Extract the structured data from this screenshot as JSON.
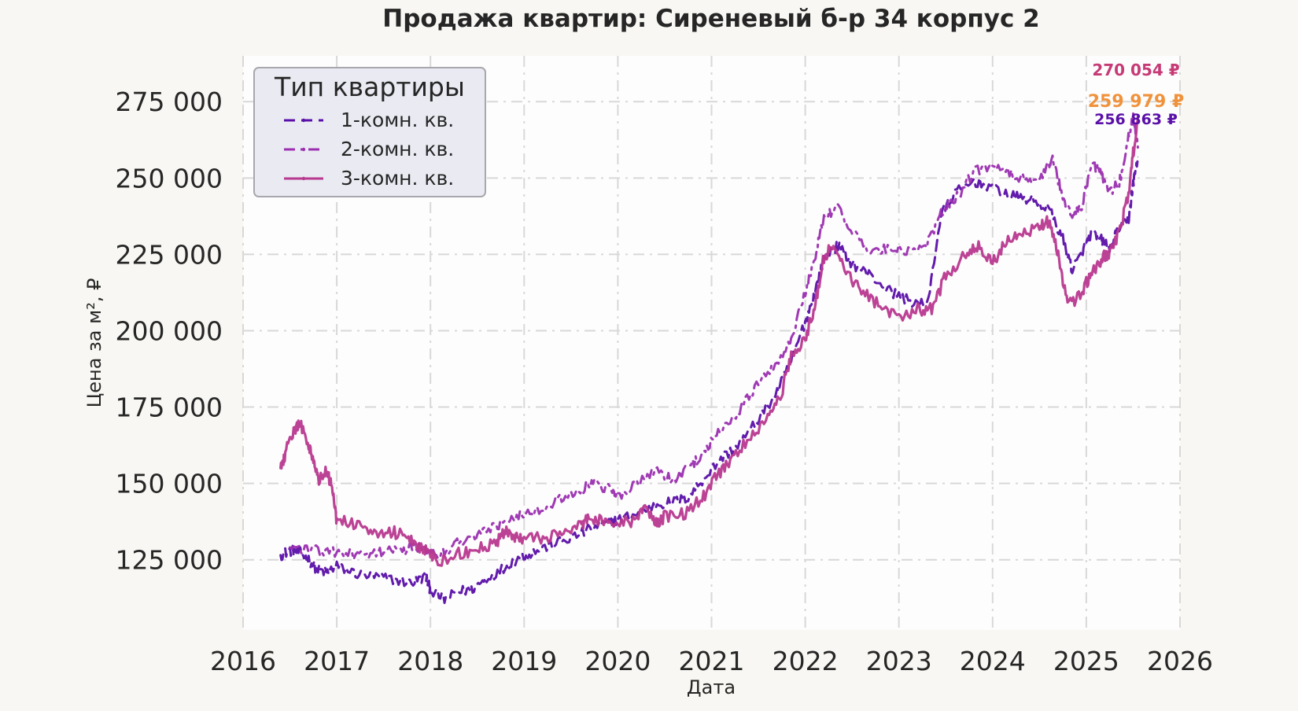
{
  "chart_data": {
    "type": "line",
    "title": "Продажа квартир: Сиреневый б-р 34 корпус 2",
    "xlabel": "Дата",
    "ylabel": "Цена за м², ₽",
    "xlim": [
      2016.0,
      2026.0
    ],
    "ylim": [
      102000,
      290000
    ],
    "x_ticks": [
      "2016",
      "2017",
      "2018",
      "2019",
      "2020",
      "2021",
      "2022",
      "2023",
      "2024",
      "2025",
      "2026"
    ],
    "y_ticks": [
      {
        "value": 125000,
        "label": "125 000"
      },
      {
        "value": 150000,
        "label": "150 000"
      },
      {
        "value": 175000,
        "label": "175 000"
      },
      {
        "value": 200000,
        "label": "200 000"
      },
      {
        "value": 225000,
        "label": "225 000"
      },
      {
        "value": 250000,
        "label": "250 000"
      },
      {
        "value": 275000,
        "label": "275 000"
      }
    ],
    "grid": true,
    "legend": {
      "title": "Тип квартиры",
      "position": "top-left"
    },
    "series": [
      {
        "name": "1-комн. кв.",
        "color": "#5a0fa8",
        "style": "dashed",
        "last_value_label": "256 863 ₽",
        "label_color": "#5a0fa8",
        "points": [
          [
            2016.4,
            126500
          ],
          [
            2016.5,
            128000
          ],
          [
            2016.6,
            127500
          ],
          [
            2016.7,
            125000
          ],
          [
            2016.8,
            121500
          ],
          [
            2016.9,
            121000
          ],
          [
            2017.0,
            123000
          ],
          [
            2017.2,
            120500
          ],
          [
            2017.4,
            119500
          ],
          [
            2017.6,
            118500
          ],
          [
            2017.8,
            117500
          ],
          [
            2017.95,
            119500
          ],
          [
            2018.0,
            115000
          ],
          [
            2018.15,
            112000
          ],
          [
            2018.3,
            114500
          ],
          [
            2018.45,
            115500
          ],
          [
            2018.6,
            119000
          ],
          [
            2018.8,
            122500
          ],
          [
            2018.95,
            126000
          ],
          [
            2019.1,
            127500
          ],
          [
            2019.3,
            130000
          ],
          [
            2019.5,
            132000
          ],
          [
            2019.7,
            135000
          ],
          [
            2019.9,
            137000
          ],
          [
            2020.0,
            138000
          ],
          [
            2020.2,
            140000
          ],
          [
            2020.4,
            143000
          ],
          [
            2020.6,
            144000
          ],
          [
            2020.75,
            145500
          ],
          [
            2020.9,
            151000
          ],
          [
            2021.1,
            158000
          ],
          [
            2021.3,
            163000
          ],
          [
            2021.5,
            171000
          ],
          [
            2021.7,
            180000
          ],
          [
            2021.85,
            190000
          ],
          [
            2022.0,
            203000
          ],
          [
            2022.1,
            212000
          ],
          [
            2022.2,
            224000
          ],
          [
            2022.35,
            228000
          ],
          [
            2022.5,
            222000
          ],
          [
            2022.7,
            218000
          ],
          [
            2022.9,
            213000
          ],
          [
            2023.1,
            210000
          ],
          [
            2023.3,
            208000
          ],
          [
            2023.45,
            238000
          ],
          [
            2023.6,
            245000
          ],
          [
            2023.8,
            249000
          ],
          [
            2024.0,
            247000
          ],
          [
            2024.2,
            244000
          ],
          [
            2024.4,
            243000
          ],
          [
            2024.6,
            240000
          ],
          [
            2024.75,
            230000
          ],
          [
            2024.85,
            220000
          ],
          [
            2024.95,
            225000
          ],
          [
            2025.05,
            232000
          ],
          [
            2025.15,
            230000
          ],
          [
            2025.25,
            227000
          ],
          [
            2025.35,
            234000
          ],
          [
            2025.45,
            236000
          ],
          [
            2025.5,
            248000
          ],
          [
            2025.55,
            256863
          ]
        ]
      },
      {
        "name": "2-комн. кв.",
        "color": "#9b2fb0",
        "style": "dashdot",
        "last_value_label": "259 979 ₽",
        "label_color": "#f0923c",
        "points": [
          [
            2016.5,
            129000
          ],
          [
            2016.7,
            128500
          ],
          [
            2016.9,
            127500
          ],
          [
            2017.1,
            127000
          ],
          [
            2017.3,
            126000
          ],
          [
            2017.5,
            127500
          ],
          [
            2017.7,
            128000
          ],
          [
            2017.85,
            129000
          ],
          [
            2018.0,
            128000
          ],
          [
            2018.15,
            127000
          ],
          [
            2018.3,
            131000
          ],
          [
            2018.5,
            133000
          ],
          [
            2018.7,
            136000
          ],
          [
            2018.85,
            139000
          ],
          [
            2019.0,
            140000
          ],
          [
            2019.2,
            142000
          ],
          [
            2019.4,
            145000
          ],
          [
            2019.6,
            148000
          ],
          [
            2019.75,
            150000
          ],
          [
            2019.9,
            148000
          ],
          [
            2020.0,
            146000
          ],
          [
            2020.2,
            149500
          ],
          [
            2020.4,
            154000
          ],
          [
            2020.6,
            151000
          ],
          [
            2020.8,
            156000
          ],
          [
            2020.95,
            162000
          ],
          [
            2021.1,
            167000
          ],
          [
            2021.3,
            174000
          ],
          [
            2021.5,
            183000
          ],
          [
            2021.7,
            190000
          ],
          [
            2021.85,
            197000
          ],
          [
            2022.0,
            213000
          ],
          [
            2022.1,
            223000
          ],
          [
            2022.2,
            238000
          ],
          [
            2022.35,
            240000
          ],
          [
            2022.5,
            232000
          ],
          [
            2022.7,
            226000
          ],
          [
            2022.9,
            227000
          ],
          [
            2023.1,
            226000
          ],
          [
            2023.3,
            228000
          ],
          [
            2023.45,
            239000
          ],
          [
            2023.6,
            243000
          ],
          [
            2023.8,
            252000
          ],
          [
            2024.0,
            254000
          ],
          [
            2024.2,
            251000
          ],
          [
            2024.4,
            249000
          ],
          [
            2024.55,
            252000
          ],
          [
            2024.65,
            256000
          ],
          [
            2024.75,
            243000
          ],
          [
            2024.85,
            238000
          ],
          [
            2024.95,
            240000
          ],
          [
            2025.05,
            255000
          ],
          [
            2025.15,
            252000
          ],
          [
            2025.25,
            246000
          ],
          [
            2025.35,
            248000
          ],
          [
            2025.45,
            263000
          ],
          [
            2025.5,
            270000
          ],
          [
            2025.55,
            259979
          ]
        ]
      },
      {
        "name": "3-комн. кв.",
        "color": "#b8388f",
        "style": "solid",
        "last_value_label": "270 054 ₽",
        "label_color": "#c63a76",
        "points": [
          [
            2016.4,
            155000
          ],
          [
            2016.45,
            160000
          ],
          [
            2016.55,
            167000
          ],
          [
            2016.6,
            170000
          ],
          [
            2016.7,
            163000
          ],
          [
            2016.75,
            158000
          ],
          [
            2016.8,
            151000
          ],
          [
            2016.9,
            154000
          ],
          [
            2016.95,
            148000
          ],
          [
            2017.0,
            138000
          ],
          [
            2017.2,
            137000
          ],
          [
            2017.4,
            134500
          ],
          [
            2017.6,
            134000
          ],
          [
            2017.75,
            133500
          ],
          [
            2017.9,
            129000
          ],
          [
            2018.0,
            126500
          ],
          [
            2018.1,
            124000
          ],
          [
            2018.3,
            127000
          ],
          [
            2018.5,
            128500
          ],
          [
            2018.7,
            131000
          ],
          [
            2018.8,
            134000
          ],
          [
            2018.9,
            132000
          ],
          [
            2019.0,
            131500
          ],
          [
            2019.2,
            132000
          ],
          [
            2019.4,
            133500
          ],
          [
            2019.6,
            136000
          ],
          [
            2019.7,
            139000
          ],
          [
            2019.85,
            137000
          ],
          [
            2020.0,
            137000
          ],
          [
            2020.2,
            138000
          ],
          [
            2020.3,
            141500
          ],
          [
            2020.4,
            137000
          ],
          [
            2020.5,
            139000
          ],
          [
            2020.7,
            140000
          ],
          [
            2020.9,
            145000
          ],
          [
            2021.05,
            152000
          ],
          [
            2021.2,
            158000
          ],
          [
            2021.4,
            164000
          ],
          [
            2021.6,
            172000
          ],
          [
            2021.75,
            180000
          ],
          [
            2021.85,
            192000
          ],
          [
            2022.0,
            197000
          ],
          [
            2022.1,
            208000
          ],
          [
            2022.2,
            224000
          ],
          [
            2022.3,
            228000
          ],
          [
            2022.45,
            219000
          ],
          [
            2022.6,
            213000
          ],
          [
            2022.8,
            208000
          ],
          [
            2023.0,
            205000
          ],
          [
            2023.2,
            207000
          ],
          [
            2023.35,
            207000
          ],
          [
            2023.5,
            218000
          ],
          [
            2023.7,
            225000
          ],
          [
            2023.85,
            228000
          ],
          [
            2024.0,
            222000
          ],
          [
            2024.15,
            229000
          ],
          [
            2024.3,
            231000
          ],
          [
            2024.5,
            234000
          ],
          [
            2024.6,
            236000
          ],
          [
            2024.7,
            225000
          ],
          [
            2024.8,
            208000
          ],
          [
            2024.95,
            212000
          ],
          [
            2025.05,
            219000
          ],
          [
            2025.15,
            223000
          ],
          [
            2025.25,
            226000
          ],
          [
            2025.35,
            232000
          ],
          [
            2025.45,
            244000
          ],
          [
            2025.5,
            258000
          ],
          [
            2025.55,
            270054
          ]
        ]
      }
    ]
  }
}
